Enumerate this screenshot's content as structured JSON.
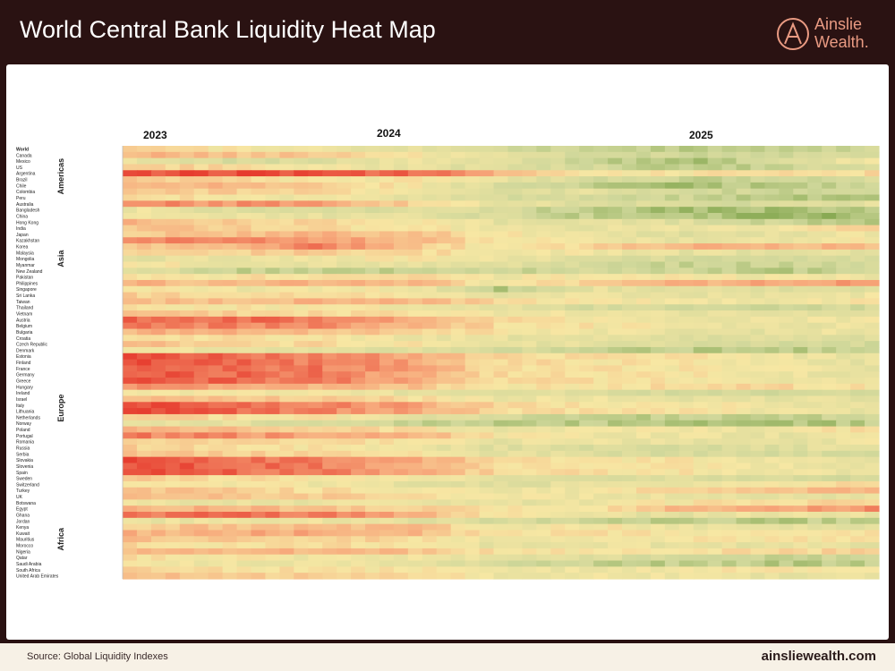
{
  "header": {
    "title": "World Central Bank Liquidity Heat Map",
    "logo_line1": "Ainslie",
    "logo_line2": "Wealth."
  },
  "footer": {
    "source": "Source: Global Liquidity Indexes",
    "website": "ainsliewealth.com"
  },
  "colors": {
    "header_bg": "#2a1212",
    "accent": "#e99a82",
    "high_liquidity": "#e63b2e",
    "neutral": "#f7e7a3",
    "low_liquidity": "#6f9a3a"
  },
  "chart_data": {
    "type": "heatmap",
    "title": "World Central Bank Liquidity Heat Map",
    "x_tick_labels": [
      "2023",
      "2024",
      "2025"
    ],
    "color_scale": [
      "#e63b2e",
      "#f7a77a",
      "#f7e7a3",
      "#cfd79a",
      "#6f9a3a"
    ],
    "y_rows": [
      "World",
      "Canada",
      "Mexico",
      "US",
      "Argentina",
      "Brazil",
      "Chile",
      "Colombia",
      "Peru",
      "Australia",
      "Bangladesh",
      "China",
      "Hong Kong",
      "India",
      "Japan",
      "Kazakhstan",
      "Korea",
      "Malaysia",
      "Mongolia",
      "Myanmar",
      "New Zealand",
      "Pakistan",
      "Philippines",
      "Singapore",
      "Sri Lanka",
      "Taiwan",
      "Thailand",
      "Vietnam",
      "Austria",
      "Belgium",
      "Bulgaria",
      "Croatia",
      "Czech Republic",
      "Denmark",
      "Estonia",
      "Finland",
      "France",
      "Germany",
      "Greece",
      "Hungary",
      "Ireland",
      "Israel",
      "Italy",
      "Lithuania",
      "Netherlands",
      "Norway",
      "Poland",
      "Portugal",
      "Romania",
      "Russia",
      "Serbia",
      "Slovakia",
      "Slovenia",
      "Spain",
      "Sweden",
      "Switzerland",
      "Turkey",
      "UK",
      "Botswana",
      "Egypt",
      "Ghana",
      "Jordan",
      "Kenya",
      "Kuwait",
      "Mauritius",
      "Morocco",
      "Nigeria",
      "Qatar",
      "Saudi Arabia",
      "South Africa",
      "United Arab Emirates"
    ],
    "region_labels": [
      {
        "label": "Americas",
        "first": 1,
        "last": 8
      },
      {
        "label": "Asia",
        "first": 9,
        "last": 27
      },
      {
        "label": "Europe",
        "first": 28,
        "last": 57
      },
      {
        "label": "Africa",
        "first": 58,
        "last": 70
      }
    ],
    "row_profiles": [
      [
        0.45,
        0.5,
        0.55,
        0.6,
        0.7,
        0.75,
        0.8,
        0.78,
        0.75
      ],
      [
        0.3,
        0.35,
        0.4,
        0.5,
        0.6,
        0.7,
        0.75,
        0.75,
        0.7
      ],
      [
        0.6,
        0.7,
        0.65,
        0.55,
        0.6,
        0.8,
        0.85,
        0.7,
        0.5
      ],
      [
        0.4,
        0.45,
        0.5,
        0.6,
        0.65,
        0.7,
        0.8,
        0.75,
        0.7
      ],
      [
        0.05,
        0.05,
        0.05,
        0.1,
        0.3,
        0.5,
        0.5,
        0.45,
        0.45
      ],
      [
        0.35,
        0.45,
        0.5,
        0.5,
        0.6,
        0.7,
        0.75,
        0.75,
        0.7
      ],
      [
        0.3,
        0.3,
        0.4,
        0.5,
        0.7,
        0.8,
        0.85,
        0.8,
        0.75
      ],
      [
        0.4,
        0.4,
        0.45,
        0.55,
        0.7,
        0.6,
        0.7,
        0.75,
        0.75
      ],
      [
        0.45,
        0.5,
        0.55,
        0.6,
        0.7,
        0.7,
        0.75,
        0.8,
        0.8
      ],
      [
        0.2,
        0.2,
        0.25,
        0.4,
        0.6,
        0.65,
        0.7,
        0.7,
        0.6
      ],
      [
        0.55,
        0.65,
        0.7,
        0.65,
        0.7,
        0.8,
        0.85,
        0.85,
        0.8
      ],
      [
        0.5,
        0.55,
        0.6,
        0.6,
        0.7,
        0.8,
        0.8,
        0.9,
        0.85
      ],
      [
        0.3,
        0.4,
        0.45,
        0.5,
        0.6,
        0.6,
        0.65,
        0.75,
        0.8
      ],
      [
        0.35,
        0.4,
        0.45,
        0.5,
        0.55,
        0.6,
        0.55,
        0.5,
        0.45
      ],
      [
        0.4,
        0.35,
        0.3,
        0.35,
        0.5,
        0.6,
        0.65,
        0.6,
        0.55
      ],
      [
        0.2,
        0.15,
        0.2,
        0.3,
        0.5,
        0.55,
        0.6,
        0.55,
        0.5
      ],
      [
        0.35,
        0.35,
        0.15,
        0.35,
        0.55,
        0.4,
        0.3,
        0.3,
        0.35
      ],
      [
        0.45,
        0.4,
        0.4,
        0.45,
        0.5,
        0.55,
        0.6,
        0.6,
        0.6
      ],
      [
        0.6,
        0.6,
        0.55,
        0.5,
        0.55,
        0.65,
        0.7,
        0.7,
        0.65
      ],
      [
        0.5,
        0.55,
        0.6,
        0.6,
        0.65,
        0.7,
        0.75,
        0.75,
        0.7
      ],
      [
        0.6,
        0.75,
        0.8,
        0.75,
        0.75,
        0.7,
        0.75,
        0.8,
        0.75
      ],
      [
        0.45,
        0.5,
        0.45,
        0.4,
        0.55,
        0.5,
        0.5,
        0.55,
        0.55
      ],
      [
        0.3,
        0.35,
        0.3,
        0.3,
        0.55,
        0.4,
        0.3,
        0.25,
        0.25
      ],
      [
        0.5,
        0.55,
        0.55,
        0.5,
        0.8,
        0.6,
        0.6,
        0.65,
        0.65
      ],
      [
        0.4,
        0.45,
        0.45,
        0.5,
        0.6,
        0.55,
        0.6,
        0.6,
        0.55
      ],
      [
        0.35,
        0.35,
        0.3,
        0.3,
        0.45,
        0.5,
        0.55,
        0.55,
        0.5
      ],
      [
        0.45,
        0.5,
        0.5,
        0.55,
        0.6,
        0.7,
        0.7,
        0.75,
        0.7
      ],
      [
        0.4,
        0.4,
        0.45,
        0.45,
        0.55,
        0.55,
        0.6,
        0.6,
        0.6
      ],
      [
        0.1,
        0.1,
        0.15,
        0.25,
        0.45,
        0.5,
        0.55,
        0.55,
        0.55
      ],
      [
        0.15,
        0.15,
        0.2,
        0.3,
        0.45,
        0.5,
        0.55,
        0.6,
        0.55
      ],
      [
        0.3,
        0.3,
        0.35,
        0.4,
        0.5,
        0.55,
        0.6,
        0.6,
        0.55
      ],
      [
        0.45,
        0.45,
        0.5,
        0.55,
        0.6,
        0.6,
        0.65,
        0.65,
        0.65
      ],
      [
        0.35,
        0.4,
        0.45,
        0.5,
        0.6,
        0.6,
        0.7,
        0.7,
        0.7
      ],
      [
        0.55,
        0.6,
        0.6,
        0.65,
        0.7,
        0.75,
        0.8,
        0.8,
        0.75
      ],
      [
        0.05,
        0.1,
        0.15,
        0.25,
        0.45,
        0.48,
        0.5,
        0.55,
        0.6
      ],
      [
        0.05,
        0.1,
        0.15,
        0.25,
        0.45,
        0.48,
        0.5,
        0.55,
        0.6
      ],
      [
        0.05,
        0.1,
        0.15,
        0.25,
        0.45,
        0.48,
        0.5,
        0.55,
        0.6
      ],
      [
        0.05,
        0.1,
        0.15,
        0.25,
        0.45,
        0.48,
        0.5,
        0.55,
        0.6
      ],
      [
        0.05,
        0.1,
        0.15,
        0.25,
        0.45,
        0.48,
        0.5,
        0.55,
        0.6
      ],
      [
        0.2,
        0.25,
        0.3,
        0.35,
        0.5,
        0.5,
        0.4,
        0.45,
        0.5
      ],
      [
        0.5,
        0.55,
        0.55,
        0.6,
        0.65,
        0.65,
        0.7,
        0.7,
        0.7
      ],
      [
        0.3,
        0.35,
        0.4,
        0.45,
        0.55,
        0.55,
        0.6,
        0.6,
        0.6
      ],
      [
        0.05,
        0.1,
        0.15,
        0.25,
        0.45,
        0.48,
        0.5,
        0.55,
        0.6
      ],
      [
        0.05,
        0.1,
        0.15,
        0.25,
        0.45,
        0.48,
        0.5,
        0.55,
        0.6
      ],
      [
        0.4,
        0.45,
        0.5,
        0.6,
        0.7,
        0.75,
        0.8,
        0.8,
        0.75
      ],
      [
        0.55,
        0.6,
        0.7,
        0.75,
        0.8,
        0.8,
        0.85,
        0.85,
        0.8
      ],
      [
        0.3,
        0.35,
        0.4,
        0.45,
        0.6,
        0.5,
        0.55,
        0.55,
        0.45
      ],
      [
        0.15,
        0.2,
        0.25,
        0.3,
        0.5,
        0.55,
        0.55,
        0.6,
        0.55
      ],
      [
        0.45,
        0.4,
        0.45,
        0.5,
        0.6,
        0.55,
        0.6,
        0.6,
        0.55
      ],
      [
        0.4,
        0.45,
        0.5,
        0.55,
        0.65,
        0.7,
        0.7,
        0.65,
        0.6
      ],
      [
        0.35,
        0.4,
        0.45,
        0.5,
        0.6,
        0.65,
        0.7,
        0.7,
        0.7
      ],
      [
        0.05,
        0.1,
        0.15,
        0.25,
        0.45,
        0.48,
        0.5,
        0.55,
        0.6
      ],
      [
        0.05,
        0.1,
        0.15,
        0.25,
        0.45,
        0.48,
        0.5,
        0.55,
        0.6
      ],
      [
        0.05,
        0.1,
        0.15,
        0.25,
        0.45,
        0.48,
        0.5,
        0.55,
        0.6
      ],
      [
        0.4,
        0.45,
        0.5,
        0.55,
        0.6,
        0.65,
        0.65,
        0.7,
        0.7
      ],
      [
        0.45,
        0.5,
        0.55,
        0.6,
        0.65,
        0.6,
        0.55,
        0.5,
        0.45
      ],
      [
        0.35,
        0.4,
        0.45,
        0.5,
        0.55,
        0.55,
        0.4,
        0.35,
        0.3
      ],
      [
        0.35,
        0.35,
        0.4,
        0.45,
        0.55,
        0.55,
        0.6,
        0.6,
        0.6
      ],
      [
        0.55,
        0.6,
        0.6,
        0.55,
        0.6,
        0.55,
        0.5,
        0.45,
        0.45
      ],
      [
        0.3,
        0.3,
        0.35,
        0.4,
        0.5,
        0.5,
        0.3,
        0.25,
        0.2
      ],
      [
        0.15,
        0.1,
        0.15,
        0.3,
        0.5,
        0.6,
        0.6,
        0.55,
        0.55
      ],
      [
        0.6,
        0.55,
        0.55,
        0.6,
        0.7,
        0.75,
        0.8,
        0.8,
        0.75
      ],
      [
        0.4,
        0.35,
        0.35,
        0.3,
        0.55,
        0.5,
        0.55,
        0.6,
        0.6
      ],
      [
        0.3,
        0.3,
        0.25,
        0.3,
        0.5,
        0.45,
        0.5,
        0.5,
        0.45
      ],
      [
        0.35,
        0.4,
        0.4,
        0.45,
        0.55,
        0.55,
        0.5,
        0.5,
        0.5
      ],
      [
        0.45,
        0.5,
        0.45,
        0.5,
        0.6,
        0.55,
        0.6,
        0.6,
        0.6
      ],
      [
        0.35,
        0.3,
        0.3,
        0.35,
        0.5,
        0.5,
        0.45,
        0.45,
        0.4
      ],
      [
        0.45,
        0.5,
        0.55,
        0.55,
        0.6,
        0.65,
        0.7,
        0.75,
        0.75
      ],
      [
        0.5,
        0.55,
        0.55,
        0.6,
        0.7,
        0.75,
        0.8,
        0.8,
        0.8
      ],
      [
        0.4,
        0.45,
        0.5,
        0.5,
        0.55,
        0.55,
        0.5,
        0.5,
        0.5
      ],
      [
        0.35,
        0.4,
        0.4,
        0.45,
        0.55,
        0.55,
        0.55,
        0.6,
        0.6
      ]
    ]
  }
}
